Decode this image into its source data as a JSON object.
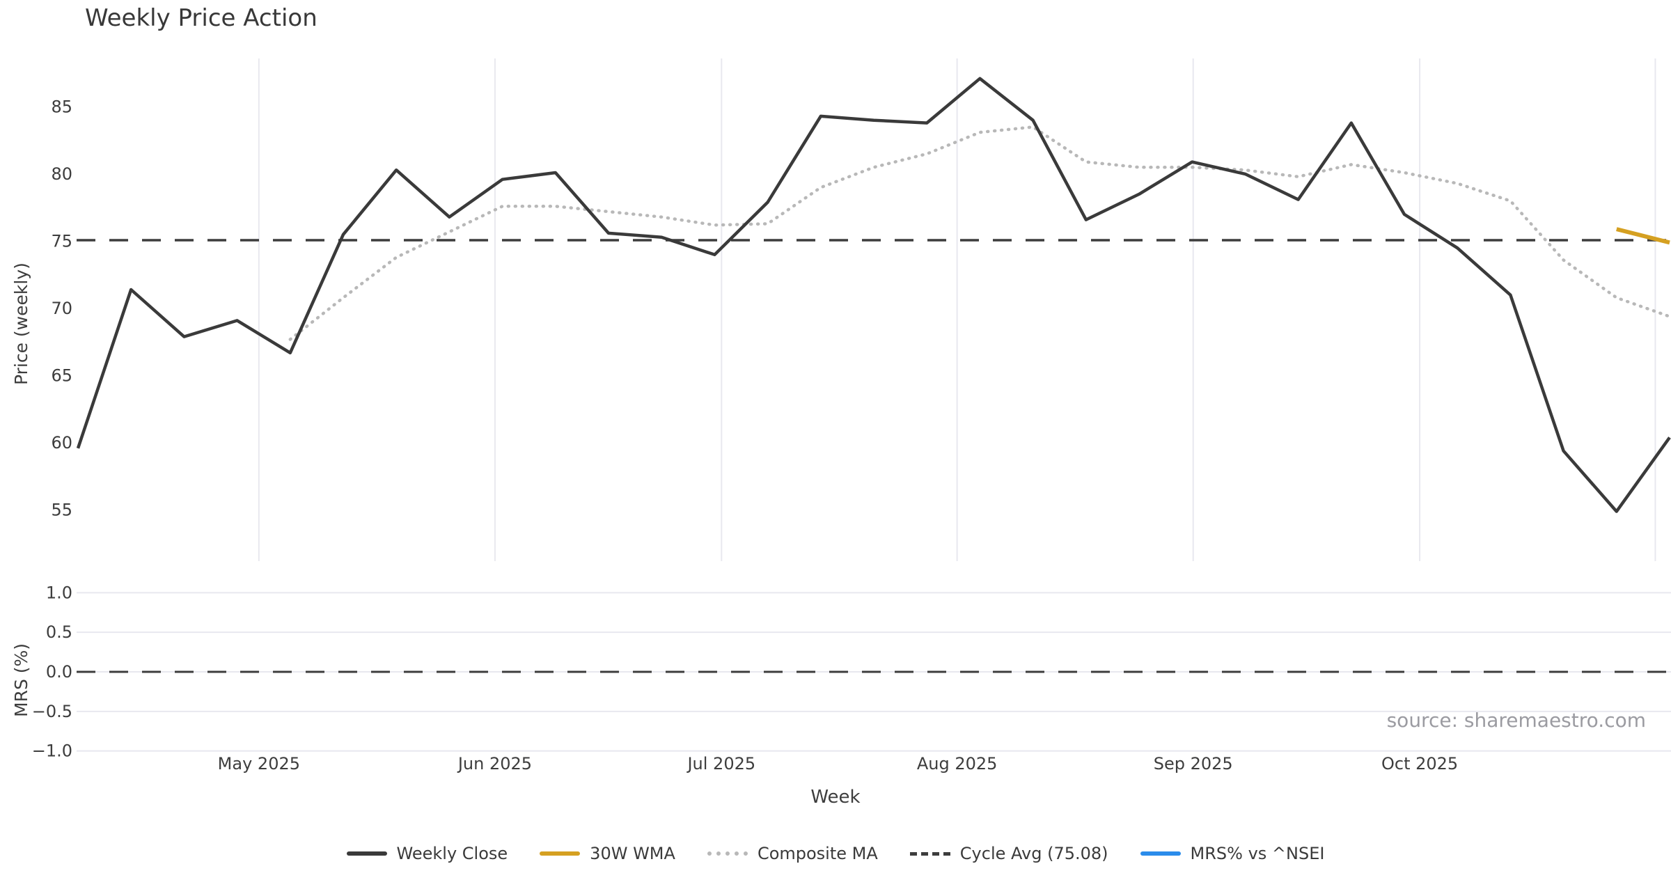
{
  "title": "Weekly Price Action",
  "xlabel": "Week",
  "source_note": "source: sharemaestro.com",
  "price_panel": {
    "ylabel": "Price (weekly)",
    "yticks": [
      55,
      60,
      65,
      70,
      75,
      80,
      85
    ],
    "cycle_avg": 75.08
  },
  "mrs_panel": {
    "ylabel": "MRS (%)",
    "yticks": [
      -1.0,
      -0.5,
      0.0,
      0.5,
      1.0
    ],
    "zero_line": 0.0
  },
  "legend": [
    {
      "label": "Weekly Close",
      "color": "#3a3a3a",
      "style": "solid"
    },
    {
      "label": "30W WMA",
      "color": "#d5a021",
      "style": "solid"
    },
    {
      "label": "Composite MA",
      "color": "#b8b8b8",
      "style": "dotted"
    },
    {
      "label": "Cycle Avg (75.08)",
      "color": "#3d3d3d",
      "style": "dashed"
    },
    {
      "label": "MRS% vs ^NSEI",
      "color": "#2b8ceb",
      "style": "solid"
    }
  ],
  "chart_data": {
    "type": "line",
    "title": "Weekly Price Action",
    "xlabel": "Week",
    "ylabel_top": "Price (weekly)",
    "ylabel_bottom": "MRS (%)",
    "x": [
      "2025-04-07",
      "2025-04-14",
      "2025-04-21",
      "2025-04-28",
      "2025-05-05",
      "2025-05-12",
      "2025-05-19",
      "2025-05-26",
      "2025-06-02",
      "2025-06-09",
      "2025-06-16",
      "2025-06-23",
      "2025-06-30",
      "2025-07-07",
      "2025-07-14",
      "2025-07-21",
      "2025-07-28",
      "2025-08-04",
      "2025-08-11",
      "2025-08-18",
      "2025-08-25",
      "2025-09-01",
      "2025-09-08",
      "2025-09-15",
      "2025-09-22",
      "2025-09-29",
      "2025-10-06",
      "2025-10-13",
      "2025-10-20",
      "2025-10-27",
      "2025-11-03"
    ],
    "series": [
      {
        "name": "Weekly Close",
        "panel": "price",
        "color": "#3a3a3a",
        "style": "solid",
        "values": [
          59.6,
          71.4,
          67.9,
          69.1,
          66.7,
          75.5,
          80.3,
          76.8,
          79.6,
          80.1,
          75.6,
          75.3,
          74.0,
          77.9,
          84.3,
          84.0,
          83.8,
          87.1,
          84.0,
          76.6,
          78.5,
          80.9,
          80.0,
          78.1,
          83.8,
          77.0,
          74.5,
          71.0,
          59.4,
          54.9,
          60.4
        ]
      },
      {
        "name": "30W WMA",
        "panel": "price",
        "color": "#d5a021",
        "style": "solid",
        "values": [
          null,
          null,
          null,
          null,
          null,
          null,
          null,
          null,
          null,
          null,
          null,
          null,
          null,
          null,
          null,
          null,
          null,
          null,
          null,
          null,
          null,
          null,
          null,
          null,
          null,
          null,
          null,
          null,
          null,
          75.9,
          74.9
        ]
      },
      {
        "name": "Composite MA",
        "panel": "price",
        "color": "#b8b8b8",
        "style": "dotted",
        "values": [
          null,
          null,
          null,
          null,
          67.7,
          70.8,
          73.8,
          75.7,
          77.6,
          77.6,
          77.2,
          76.8,
          76.2,
          76.3,
          79.0,
          80.5,
          81.5,
          83.1,
          83.5,
          80.9,
          80.5,
          80.5,
          80.3,
          79.8,
          80.7,
          80.1,
          79.3,
          78.0,
          73.6,
          70.8,
          69.4
        ]
      },
      {
        "name": "Cycle Avg (75.08)",
        "panel": "price",
        "color": "#3d3d3d",
        "style": "dashed",
        "constant": 75.08
      },
      {
        "name": "MRS% vs ^NSEI",
        "panel": "mrs",
        "color": "#2b8ceb",
        "style": "solid",
        "values": []
      }
    ],
    "month_ticks": [
      {
        "label": "May 2025",
        "week_pos": 3.41
      },
      {
        "label": "Jun 2025",
        "week_pos": 7.86
      },
      {
        "label": "Jul 2025",
        "week_pos": 12.13
      },
      {
        "label": "Aug 2025",
        "week_pos": 16.57
      },
      {
        "label": "Sep 2025",
        "week_pos": 21.02
      },
      {
        "label": "Oct 2025",
        "week_pos": 25.29
      },
      {
        "label": "",
        "week_pos": 29.73
      }
    ],
    "yticks_price": [
      55,
      60,
      65,
      70,
      75,
      80,
      85
    ],
    "yticks_mrs": [
      -1.0,
      -0.5,
      0.0,
      0.5,
      1.0
    ],
    "ylim_price": [
      51.2,
      88.6
    ],
    "ylim_mrs": [
      -1.06,
      1.06
    ],
    "grid": {
      "price_panel": "vertical-only",
      "mrs_panel": "horizontal-only"
    },
    "legend_position": "bottom-center"
  },
  "colors": {
    "weekly_close": "#3a3a3a",
    "wma30": "#d5a021",
    "composite_ma": "#b8b8b8",
    "cycle_avg": "#3d3d3d",
    "mrs_line": "#2b8ceb",
    "gridline": "#e8e8ef",
    "tick_text": "#3d3d3d",
    "source_text": "#9b9ba1"
  }
}
